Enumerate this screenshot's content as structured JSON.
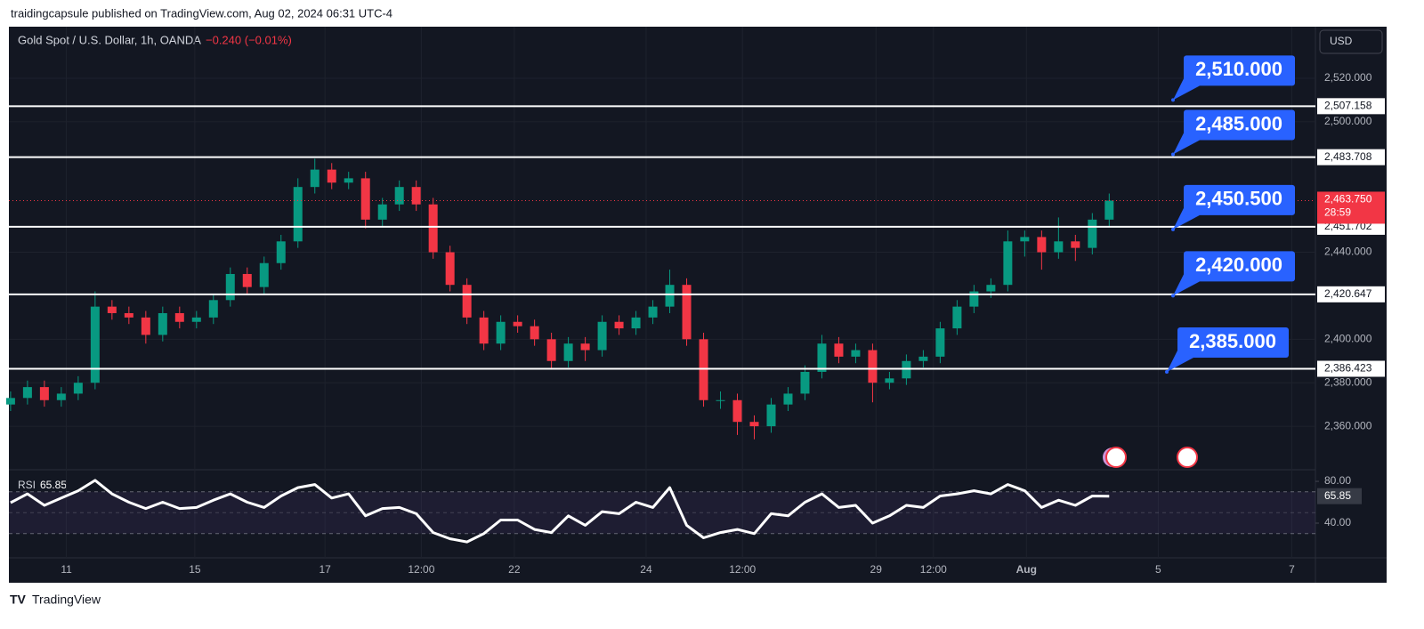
{
  "header": {
    "publisher_line": "traidingcapsule published on TradingView.com, Aug 02, 2024 06:31 UTC-4"
  },
  "footer": {
    "brand": "TradingView"
  },
  "chart_data": [
    {
      "type": "candlestick",
      "title": "Gold Spot / U.S. Dollar, 1h, OANDA",
      "change_label": "−0.240 (−0.01%)",
      "currency": "USD",
      "up_color": "#089981",
      "down_color": "#f23645",
      "open": [
        2370,
        2373,
        2378,
        2372,
        2375,
        2380,
        2415,
        2412,
        2410,
        2402,
        2412,
        2408,
        2410,
        2418,
        2430,
        2424,
        2435,
        2445,
        2470,
        2478,
        2472,
        2474,
        2455,
        2462,
        2470,
        2462,
        2440,
        2425,
        2410,
        2398,
        2408,
        2406,
        2400,
        2390,
        2398,
        2395,
        2408,
        2405,
        2410,
        2415,
        2425,
        2400,
        2372,
        2372,
        2362,
        2360,
        2370,
        2375,
        2385,
        2398,
        2392,
        2395,
        2380,
        2382,
        2390,
        2392,
        2405,
        2415,
        2422,
        2425,
        2445,
        2447,
        2440,
        2445,
        2442,
        2455
      ],
      "high": [
        2376,
        2381,
        2381,
        2378,
        2383,
        2422,
        2418,
        2415,
        2413,
        2415,
        2415,
        2413,
        2421,
        2433,
        2433,
        2438,
        2448,
        2474,
        2483,
        2481,
        2477,
        2477,
        2465,
        2473,
        2473,
        2465,
        2443,
        2428,
        2413,
        2411,
        2411,
        2409,
        2403,
        2401,
        2401,
        2411,
        2411,
        2413,
        2418,
        2432,
        2428,
        2403,
        2376,
        2375,
        2365,
        2373,
        2378,
        2388,
        2402,
        2401,
        2398,
        2398,
        2385,
        2393,
        2395,
        2408,
        2418,
        2425,
        2428,
        2450,
        2450,
        2450,
        2456,
        2448,
        2458,
        2467
      ],
      "low": [
        2367,
        2370,
        2369,
        2369,
        2372,
        2377,
        2409,
        2407,
        2398,
        2399,
        2405,
        2405,
        2407,
        2415,
        2421,
        2421,
        2432,
        2442,
        2467,
        2469,
        2469,
        2451,
        2452,
        2459,
        2459,
        2437,
        2422,
        2407,
        2395,
        2395,
        2403,
        2397,
        2386,
        2387,
        2390,
        2392,
        2402,
        2402,
        2407,
        2412,
        2397,
        2369,
        2368,
        2356,
        2354,
        2357,
        2367,
        2372,
        2382,
        2389,
        2389,
        2371,
        2377,
        2379,
        2387,
        2389,
        2402,
        2412,
        2419,
        2422,
        2438,
        2432,
        2437,
        2436,
        2439,
        2452
      ],
      "close": [
        2373,
        2378,
        2372,
        2375,
        2380,
        2415,
        2412,
        2410,
        2402,
        2412,
        2408,
        2410,
        2418,
        2430,
        2424,
        2435,
        2445,
        2470,
        2478,
        2472,
        2474,
        2455,
        2462,
        2470,
        2462,
        2440,
        2425,
        2410,
        2398,
        2408,
        2406,
        2400,
        2390,
        2398,
        2395,
        2408,
        2405,
        2410,
        2415,
        2425,
        2400,
        2372,
        2372,
        2362,
        2360,
        2370,
        2375,
        2385,
        2398,
        2392,
        2395,
        2380,
        2382,
        2390,
        2392,
        2405,
        2415,
        2422,
        2425,
        2445,
        2447,
        2440,
        2445,
        2442,
        2455,
        2463.75
      ],
      "xlim": [
        -0.1,
        77.2
      ],
      "xticks": [
        {
          "value": 3.3,
          "label": "11"
        },
        {
          "value": 10.9,
          "label": "15"
        },
        {
          "value": 18.6,
          "label": "17"
        },
        {
          "value": 24.3,
          "label": "12:00"
        },
        {
          "value": 29.8,
          "label": "22"
        },
        {
          "value": 37.6,
          "label": "24"
        },
        {
          "value": 43.3,
          "label": "12:00"
        },
        {
          "value": 51.2,
          "label": "29"
        },
        {
          "value": 54.6,
          "label": "12:00"
        },
        {
          "value": 60.1,
          "label": "Aug"
        },
        {
          "value": 67.9,
          "label": "5"
        },
        {
          "value": 75.8,
          "label": "7"
        }
      ],
      "ylim": [
        2340,
        2543.7
      ],
      "yticks": [
        {
          "value": 2360,
          "label": "2,360.000"
        },
        {
          "value": 2380,
          "label": "2,380.000"
        },
        {
          "value": 2400,
          "label": "2,400.000"
        },
        {
          "value": 2440,
          "label": "2,440.000"
        },
        {
          "value": 2500,
          "label": "2,500.000"
        },
        {
          "value": 2520,
          "label": "2,520.000"
        }
      ],
      "grid": true,
      "levels": [
        {
          "value": 2507.158,
          "label": "2,507.158"
        },
        {
          "value": 2483.708,
          "label": "2,483.708"
        },
        {
          "value": 2451.702,
          "label": "2,451.702"
        },
        {
          "value": 2420.647,
          "label": "2,420.647"
        },
        {
          "value": 2386.423,
          "label": "2,386.423"
        }
      ],
      "last_price": {
        "value": 2463.75,
        "label": "2,463.750"
      },
      "countdown": "28:59",
      "annotations": [
        {
          "value": 2510,
          "label": "2,510.000"
        },
        {
          "value": 2485,
          "label": "2,485.000"
        },
        {
          "value": 2450.5,
          "label": "2,450.500"
        },
        {
          "value": 2420,
          "label": "2,420.000"
        },
        {
          "value": 2385,
          "label": "2,385.000"
        }
      ],
      "annotation_color": "#2962ff"
    },
    {
      "type": "line",
      "name": "RSI",
      "last_value": 65.85,
      "color": "#ffffff",
      "values": [
        59.6,
        68,
        57,
        64,
        71,
        81,
        68,
        60,
        54,
        60,
        54,
        55,
        62,
        68,
        60,
        55,
        66,
        74,
        77,
        64,
        68,
        47,
        54,
        55,
        49,
        31,
        25,
        22,
        30,
        43,
        43,
        34,
        31,
        47,
        38,
        51,
        49,
        60,
        55,
        74,
        38,
        26,
        31,
        34,
        30,
        49,
        47,
        60,
        68,
        55,
        57,
        40,
        47,
        57,
        55,
        66,
        68,
        71,
        68,
        77,
        71,
        55,
        62,
        57,
        66,
        65.85
      ],
      "ylim": [
        6.8,
        91.1
      ],
      "yticks": [
        {
          "value": 40,
          "label": "40.00"
        },
        {
          "value": 80,
          "label": "80.00"
        }
      ],
      "bands": [
        30,
        50,
        70
      ]
    }
  ]
}
